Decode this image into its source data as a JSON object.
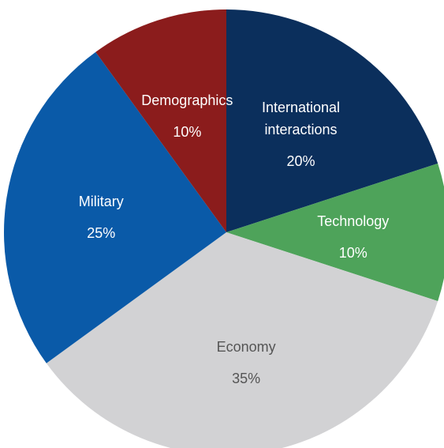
{
  "chart_data": {
    "type": "pie",
    "slices": [
      {
        "label_lines": [
          "International",
          "interactions"
        ],
        "value": 20,
        "value_label": "20%",
        "color": "#0b2f5c",
        "text_color": "#ffffff"
      },
      {
        "label_lines": [
          "Technology"
        ],
        "value": 10,
        "value_label": "10%",
        "color": "#4ea35a",
        "text_color": "#ffffff"
      },
      {
        "label_lines": [
          "Economy"
        ],
        "value": 35,
        "value_label": "35%",
        "color": "#d2d2d4",
        "text_color": "#555555"
      },
      {
        "label_lines": [
          "Military"
        ],
        "value": 25,
        "value_label": "25%",
        "color": "#0a5aa8",
        "text_color": "#ffffff"
      },
      {
        "label_lines": [
          "Demographics"
        ],
        "value": 10,
        "value_label": "10%",
        "color": "#8b1c1c",
        "text_color": "#ffffff"
      }
    ],
    "start_angle_deg": 0,
    "direction": "clockwise",
    "legend": "none"
  }
}
